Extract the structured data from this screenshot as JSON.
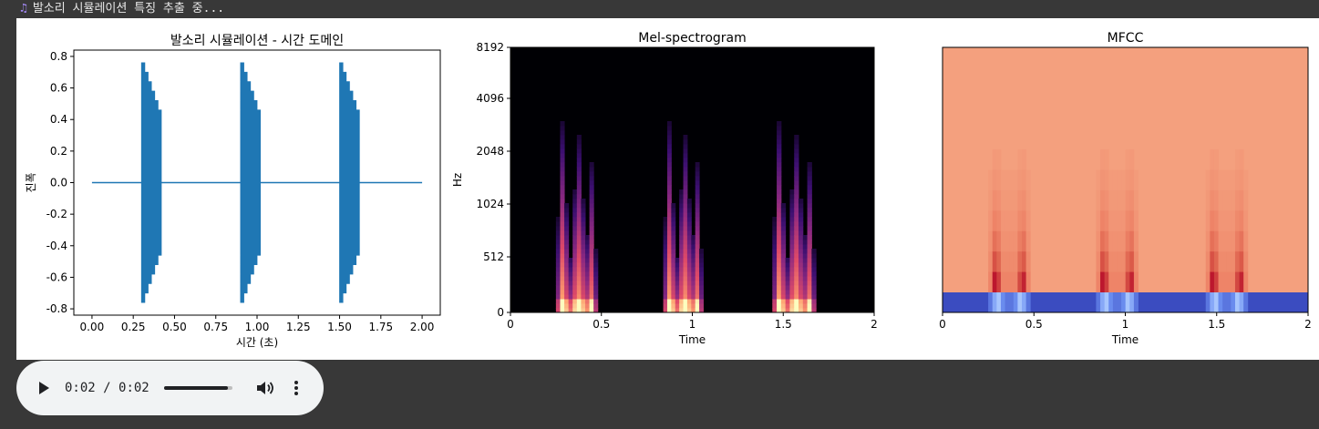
{
  "status": {
    "icon": "music-note-icon",
    "text": "발소리 시뮬레이션 특징 추출 중..."
  },
  "chart_data": [
    {
      "type": "line",
      "title": "발소리 시뮬레이션 - 시간 도메인",
      "xlabel": "시간 (초)",
      "ylabel": "진폭",
      "xlim": [
        -0.11,
        2.11
      ],
      "ylim": [
        -0.84,
        0.84
      ],
      "xticks": [
        "0.00",
        "0.25",
        "0.50",
        "0.75",
        "1.00",
        "1.25",
        "1.50",
        "1.75",
        "2.00"
      ],
      "yticks": [
        "0.8",
        "0.6",
        "0.4",
        "0.2",
        "0.0",
        "-0.2",
        "-0.4",
        "-0.6",
        "-0.8"
      ],
      "color": "#1f77b4",
      "baseline": 0.0,
      "steps": [
        {
          "start": 0.3,
          "end": 0.42,
          "peak": 0.79,
          "tail": 0.43
        },
        {
          "start": 0.9,
          "end": 1.02,
          "peak": 0.79,
          "tail": 0.43
        },
        {
          "start": 1.5,
          "end": 1.62,
          "peak": 0.79,
          "tail": 0.43
        }
      ]
    },
    {
      "type": "heatmap",
      "title": "Mel-spectrogram",
      "xlabel": "Time",
      "ylabel": "Hz",
      "xlim": [
        0,
        2
      ],
      "xticks": [
        "0",
        "0.5",
        "1",
        "1.5",
        "2"
      ],
      "yticks": [
        "0",
        "512",
        "1024",
        "2048",
        "4096",
        "8192"
      ],
      "colormap": "magma",
      "background": "#000004",
      "events": [
        {
          "start": 0.25,
          "end": 0.48
        },
        {
          "start": 0.84,
          "end": 1.06
        },
        {
          "start": 1.44,
          "end": 1.68
        }
      ]
    },
    {
      "type": "heatmap",
      "title": "MFCC",
      "xlabel": "Time",
      "xlim": [
        0,
        2
      ],
      "xticks": [
        "0",
        "0.5",
        "1",
        "1.5",
        "2"
      ],
      "colormap": "coolwarm",
      "background": "#f4a07e",
      "bottom_band": "#3b4cc0",
      "events": [
        {
          "start": 0.25,
          "end": 0.48
        },
        {
          "start": 0.84,
          "end": 1.06
        },
        {
          "start": 1.44,
          "end": 1.68
        }
      ]
    }
  ],
  "player": {
    "current_time": "0:02",
    "separator": " / ",
    "duration": "0:02",
    "progress": 0.93
  }
}
